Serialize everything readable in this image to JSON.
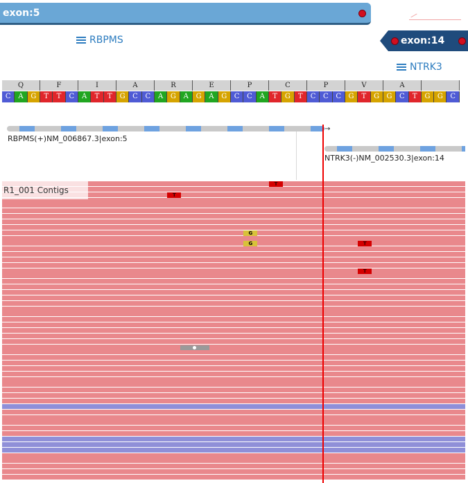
{
  "exon5": {
    "label": "exon:5",
    "color": "#6aa7d6"
  },
  "exon14": {
    "label": "exon:14",
    "color": "#1f4b7c"
  },
  "genes": {
    "left": "RBPMS",
    "right": "NTRK3"
  },
  "amino_acids": [
    "Q",
    "F",
    "I",
    "A",
    "R",
    "E",
    "P",
    "C",
    "P",
    "V",
    "A",
    ""
  ],
  "nucleotides": [
    "C",
    "A",
    "G",
    "T",
    "T",
    "C",
    "A",
    "T",
    "T",
    "G",
    "C",
    "C",
    "A",
    "G",
    "A",
    "G",
    "A",
    "G",
    "C",
    "C",
    "A",
    "T",
    "G",
    "T",
    "C",
    "C",
    "C",
    "G",
    "T",
    "G",
    "G",
    "C",
    "T",
    "G",
    "G",
    "C"
  ],
  "nucleotide_colors": {
    "A": "#21a621",
    "C": "#4f5bd5",
    "G": "#d6a400",
    "T": "#e0262b"
  },
  "transcripts": {
    "left": "RBPMS(+)NM_006867.3|exon:5",
    "right": "NTRK3(-)NM_002530.3|exon:14"
  },
  "contigs_label": "R1_001 Contigs",
  "reads": {
    "count": 55,
    "blue_rows": [
      41,
      47,
      48,
      49
    ]
  },
  "mismatches": [
    {
      "row": 0,
      "col": 21,
      "base": "T",
      "type": "red"
    },
    {
      "row": 2,
      "col": 13,
      "base": "T",
      "type": "red"
    },
    {
      "row": 9,
      "col": 19,
      "base": "G",
      "type": "yellow"
    },
    {
      "row": 11,
      "col": 19,
      "base": "G",
      "type": "yellow"
    },
    {
      "row": 11,
      "col": 28,
      "base": "T",
      "type": "red"
    },
    {
      "row": 16,
      "col": 28,
      "base": "T",
      "type": "red"
    }
  ],
  "colors": {
    "read": "#e9888c",
    "read_blue": "#8f8fd8",
    "breakpoint": "#ee0000"
  }
}
